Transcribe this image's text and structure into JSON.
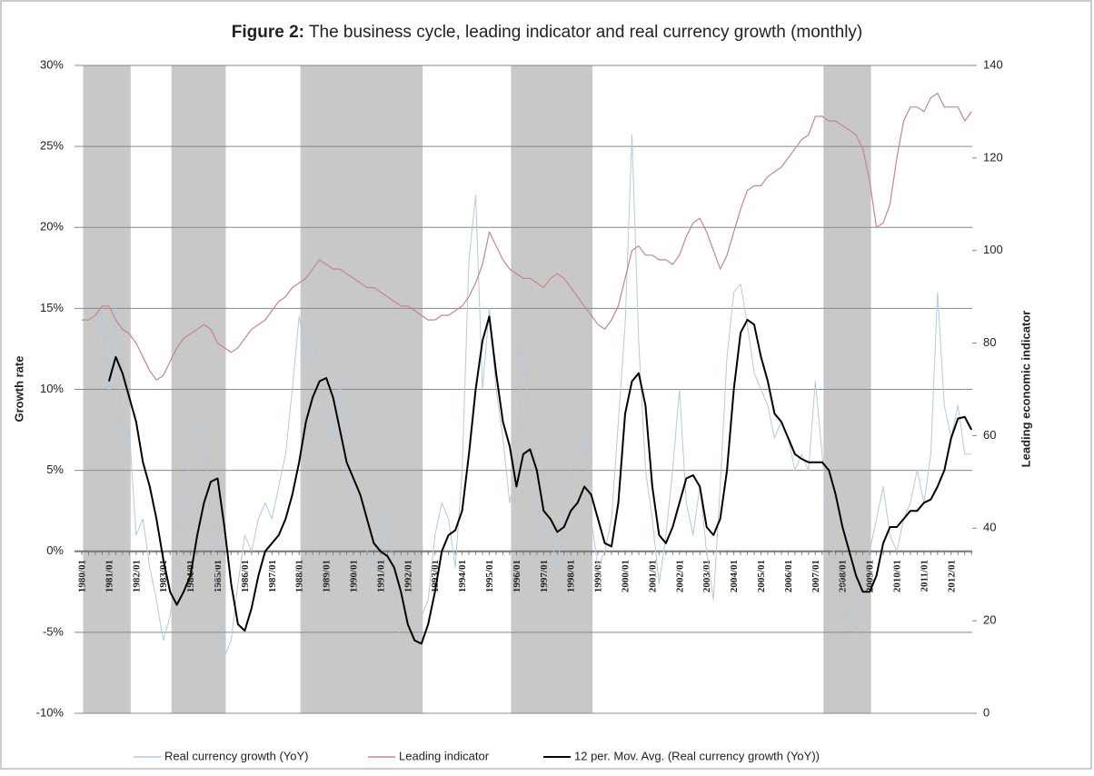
{
  "chart_data": {
    "type": "line",
    "title_label": "Figure 2:",
    "title": "The business cycle, leading indicator and real currency growth (monthly)",
    "y_label": "Growth rate",
    "y2_label": "Leading economic indicator",
    "categories": [
      "1980/01",
      null,
      null,
      null,
      "1981/01",
      null,
      null,
      null,
      "1982/01",
      null,
      null,
      null,
      "1983/01",
      null,
      null,
      null,
      "1984/01",
      null,
      null,
      null,
      "1985/01",
      null,
      null,
      null,
      "1986/01",
      null,
      null,
      null,
      "1987/01",
      null,
      null,
      null,
      "1988/01",
      null,
      null,
      null,
      "1989/01",
      null,
      null,
      null,
      "1990/01",
      null,
      null,
      null,
      "1991/01",
      null,
      null,
      null,
      "1992/01",
      null,
      null,
      null,
      "1993/01",
      null,
      null,
      null,
      "1994/01",
      null,
      null,
      null,
      "1995/01",
      null,
      null,
      null,
      "1996/01",
      null,
      null,
      null,
      "1997/01",
      null,
      null,
      null,
      "1998/01",
      null,
      null,
      null,
      "1999/01",
      null,
      null,
      null,
      "2000/01",
      null,
      null,
      null,
      "2001/01",
      null,
      null,
      null,
      "2002/01",
      null,
      null,
      null,
      "2003/01",
      null,
      null,
      null,
      "2004/01",
      null,
      null,
      null,
      "2005/01",
      null,
      null,
      null,
      "2006/01",
      null,
      null,
      null,
      "2007/01",
      null,
      null,
      null,
      "2008/01",
      null,
      null,
      null,
      "2009/01",
      null,
      null,
      null,
      "2010/01",
      null,
      null,
      null,
      "2011/01",
      null,
      null,
      null,
      "2012/01",
      null,
      null,
      null
    ],
    "shaded_periods": [
      [
        1,
        8
      ],
      [
        14,
        22
      ],
      [
        33,
        51
      ],
      [
        64,
        76
      ],
      [
        110,
        117
      ]
    ],
    "series": [
      {
        "name": "Real currency growth (YoY)",
        "color": "#b3c9df",
        "width": 1,
        "values": [
          null,
          null,
          12,
          15,
          9.5,
          15,
          6,
          7.5,
          1,
          2,
          -1,
          -3,
          -5.5,
          -4,
          -1,
          3,
          6,
          8,
          7.5,
          2,
          -3,
          -6.5,
          -5.5,
          -2,
          1,
          0,
          2,
          3,
          2,
          4,
          6,
          10,
          14.5,
          12,
          13.5,
          11,
          8,
          7,
          10.5,
          5,
          3,
          1,
          0,
          -1,
          0,
          3,
          -2,
          -6,
          -7.5,
          -7,
          -4,
          -3,
          1,
          3,
          2,
          -1,
          5,
          18,
          22,
          10,
          15,
          10,
          7,
          3,
          5,
          13,
          8,
          3,
          1,
          1,
          -1,
          2,
          5,
          6,
          7,
          2,
          -1,
          0,
          2,
          8,
          14,
          25.7,
          13,
          5,
          2,
          -2,
          1,
          5,
          10,
          3,
          1,
          4,
          0,
          -3,
          4,
          12,
          16,
          16.5,
          14,
          11,
          10,
          9,
          7,
          8,
          7,
          5,
          6,
          5,
          10.5,
          6,
          2,
          -1,
          -2,
          -4.5,
          -5,
          -1,
          0,
          2,
          4,
          1,
          0,
          2,
          3,
          5,
          3,
          6,
          16,
          9,
          7,
          9,
          6,
          6
        ]
      },
      {
        "name": "Leading indicator",
        "color": "#c98585",
        "width": 1.2,
        "axis": "y2",
        "values": [
          85,
          85,
          86,
          88,
          88,
          85,
          83,
          82,
          80,
          77,
          74,
          72,
          73,
          76,
          79,
          81,
          82,
          83,
          84,
          83,
          80,
          79,
          78,
          79,
          81,
          83,
          84,
          85,
          87,
          89,
          90,
          92,
          93,
          94,
          96,
          98,
          97,
          96,
          96,
          95,
          94,
          93,
          92,
          92,
          91,
          90,
          89,
          88,
          88,
          87,
          86,
          85,
          85,
          86,
          86,
          87,
          88,
          90,
          93,
          97,
          104,
          101,
          98,
          96,
          95,
          94,
          94,
          93,
          92,
          94,
          95,
          94,
          92,
          90,
          88,
          86,
          84,
          83,
          85,
          88,
          94,
          100,
          101,
          99,
          99,
          98,
          98,
          97,
          99,
          103,
          106,
          107,
          104,
          100,
          96,
          99,
          104,
          109,
          113,
          114,
          114,
          116,
          117,
          118,
          120,
          122,
          124,
          125,
          129,
          129,
          128,
          128,
          127,
          126,
          125,
          122,
          115,
          105,
          106,
          110,
          120,
          128,
          131,
          131,
          130,
          133,
          134,
          131,
          131,
          131,
          128,
          130
        ]
      },
      {
        "name": "12 per. Mov. Avg. (Real currency growth (YoY))",
        "color": "#000000",
        "width": 2,
        "values": [
          null,
          null,
          null,
          null,
          10.5,
          12,
          11,
          9.5,
          8,
          5.5,
          4,
          2,
          -0.5,
          -2.5,
          -3.3,
          -2.5,
          -1.5,
          1,
          3,
          4.3,
          4.5,
          1.5,
          -2,
          -4.5,
          -4.9,
          -3.5,
          -1.5,
          0,
          0.5,
          1,
          2,
          3.5,
          5.5,
          8,
          9.5,
          10.5,
          10.7,
          9.5,
          7.5,
          5.5,
          4.5,
          3.5,
          2,
          0.5,
          0,
          -0.3,
          -1,
          -2.5,
          -4.5,
          -5.5,
          -5.7,
          -4.5,
          -2.5,
          0,
          1,
          1.3,
          2.5,
          6,
          10,
          13,
          14.5,
          11,
          8,
          6.5,
          4,
          6,
          6.3,
          5,
          2.5,
          2,
          1.2,
          1.5,
          2.5,
          3,
          4,
          3.5,
          2,
          0.5,
          0.3,
          3,
          8.5,
          10.5,
          11,
          9,
          4,
          1,
          0.5,
          1.5,
          3,
          4.5,
          4.7,
          4,
          1.5,
          1,
          2,
          5,
          10,
          13.5,
          14.3,
          14,
          12,
          10.5,
          8.5,
          8,
          7,
          6,
          5.7,
          5.5,
          5.5,
          5.5,
          5,
          3.5,
          1.5,
          0,
          -1.5,
          -2.5,
          -2.5,
          -1.5,
          0.5,
          1.5,
          1.5,
          2,
          2.5,
          2.5,
          3,
          3.2,
          4,
          5,
          7,
          8.2,
          8.3,
          7.5
        ]
      }
    ],
    "ylim": [
      -10,
      30
    ],
    "yticks": [
      {
        "value": -10,
        "label": "-10%"
      },
      {
        "value": -5,
        "label": "-5%"
      },
      {
        "value": 0,
        "label": "0%"
      },
      {
        "value": 5,
        "label": "5%"
      },
      {
        "value": 10,
        "label": "10%"
      },
      {
        "value": 15,
        "label": "15%"
      },
      {
        "value": 20,
        "label": "20%"
      },
      {
        "value": 25,
        "label": "25%"
      },
      {
        "value": 30,
        "label": "30%"
      }
    ],
    "y2lim": [
      0,
      140
    ],
    "y2ticks": [
      0,
      20,
      40,
      60,
      80,
      100,
      120,
      140
    ],
    "grid": true,
    "shade_color": "#c8c8c8",
    "legend": "bottom"
  }
}
